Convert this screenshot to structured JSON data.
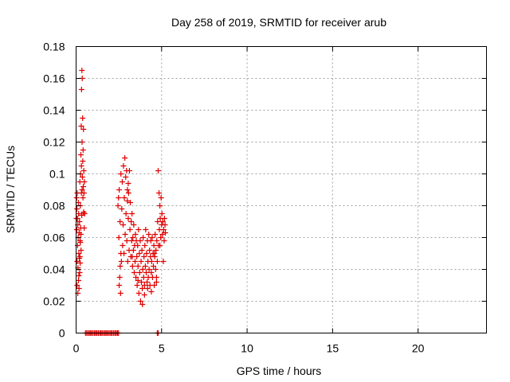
{
  "chart_data": {
    "type": "scatter",
    "title": "Day 258 of 2019, SRMTID for receiver arub",
    "xlabel": "GPS time / hours",
    "ylabel": "SRMTID / TECUs",
    "xlim": [
      0,
      24
    ],
    "ylim": [
      0,
      0.18
    ],
    "x_ticks": [
      0,
      5,
      10,
      15,
      20
    ],
    "x_tick_labels": [
      "0",
      "5",
      "10",
      "15",
      "20"
    ],
    "y_ticks": [
      0,
      0.02,
      0.04,
      0.06,
      0.08,
      0.1,
      0.12,
      0.14,
      0.16,
      0.18
    ],
    "y_tick_labels": [
      "0",
      "0.02",
      "0.04",
      "0.06",
      "0.08",
      "0.1",
      "0.12",
      "0.14",
      "0.16",
      "0.18"
    ],
    "grid": true,
    "marker": "plus",
    "color": "#e00000",
    "series": [
      {
        "points": [
          [
            0.02,
            0.072
          ],
          [
            0.03,
            0.085
          ],
          [
            0.04,
            0.065
          ],
          [
            0.05,
            0.078
          ],
          [
            0.06,
            0.045
          ],
          [
            0.07,
            0.088
          ],
          [
            0.08,
            0.072
          ],
          [
            0.09,
            0.055
          ],
          [
            0.1,
            0.068
          ],
          [
            0.11,
            0.041
          ],
          [
            0.12,
            0.06
          ],
          [
            0.13,
            0.082
          ],
          [
            0.14,
            0.033
          ],
          [
            0.15,
            0.075
          ],
          [
            0.16,
            0.05
          ],
          [
            0.17,
            0.028
          ],
          [
            0.18,
            0.063
          ],
          [
            0.19,
            0.047
          ],
          [
            0.2,
            0.07
          ],
          [
            0.21,
            0.038
          ],
          [
            0.22,
            0.095
          ],
          [
            0.23,
            0.058
          ],
          [
            0.24,
            0.044
          ],
          [
            0.25,
            0.08
          ],
          [
            0.26,
            0.1
          ],
          [
            0.27,
            0.066
          ],
          [
            0.28,
            0.112
          ],
          [
            0.29,
            0.052
          ],
          [
            0.3,
            0.13
          ],
          [
            0.31,
            0.088
          ],
          [
            0.32,
            0.153
          ],
          [
            0.33,
            0.074
          ],
          [
            0.34,
            0.165
          ],
          [
            0.35,
            0.12
          ],
          [
            0.36,
            0.16
          ],
          [
            0.37,
            0.098
          ],
          [
            0.38,
            0.135
          ],
          [
            0.39,
            0.108
          ],
          [
            0.4,
            0.085
          ],
          [
            0.41,
            0.115
          ],
          [
            0.42,
            0.092
          ],
          [
            0.43,
            0.128
          ],
          [
            0.44,
            0.076
          ],
          [
            0.45,
            0.102
          ],
          [
            0.46,
            0.088
          ],
          [
            0.47,
            0.066
          ],
          [
            0.48,
            0.095
          ],
          [
            0.5,
            0.075
          ],
          [
            0.06,
            0.03
          ],
          [
            0.1,
            0.025
          ],
          [
            0.16,
            0.036
          ],
          [
            0.22,
            0.048
          ],
          [
            0.25,
            0.057
          ],
          [
            0.28,
            0.062
          ],
          [
            0.31,
            0.105
          ],
          [
            0.35,
            0.09
          ],
          [
            2.45,
            0.08
          ],
          [
            2.48,
            0.085
          ],
          [
            2.5,
            0.06
          ],
          [
            2.52,
            0.09
          ],
          [
            2.55,
            0.035
          ],
          [
            2.57,
            0.07
          ],
          [
            2.6,
            0.025
          ],
          [
            2.62,
            0.1
          ],
          [
            2.65,
            0.045
          ],
          [
            2.67,
            0.078
          ],
          [
            2.7,
            0.095
          ],
          [
            2.72,
            0.055
          ],
          [
            2.75,
            0.068
          ],
          [
            2.77,
            0.105
          ],
          [
            2.8,
            0.05
          ],
          [
            2.82,
            0.085
          ],
          [
            2.85,
            0.11
          ],
          [
            2.87,
            0.062
          ],
          [
            2.9,
            0.098
          ],
          [
            2.92,
            0.075
          ],
          [
            2.95,
            0.102
          ],
          [
            2.97,
            0.058
          ],
          [
            3.0,
            0.09
          ],
          [
            3.02,
            0.045
          ],
          [
            3.05,
            0.072
          ],
          [
            3.07,
            0.088
          ],
          [
            3.1,
            0.052
          ],
          [
            3.12,
            0.102
          ],
          [
            3.15,
            0.065
          ],
          [
            3.17,
            0.082
          ],
          [
            3.2,
            0.048
          ],
          [
            3.22,
            0.07
          ],
          [
            3.25,
            0.058
          ],
          [
            3.27,
            0.075
          ],
          [
            3.3,
            0.042
          ],
          [
            3.32,
            0.06
          ],
          [
            3.35,
            0.052
          ],
          [
            3.37,
            0.068
          ],
          [
            3.4,
            0.038
          ],
          [
            3.42,
            0.055
          ],
          [
            3.45,
            0.045
          ],
          [
            3.47,
            0.062
          ],
          [
            3.5,
            0.035
          ],
          [
            3.52,
            0.058
          ],
          [
            3.55,
            0.048
          ],
          [
            3.57,
            0.03
          ],
          [
            3.6,
            0.055
          ],
          [
            3.62,
            0.042
          ],
          [
            3.65,
            0.065
          ],
          [
            3.67,
            0.025
          ],
          [
            3.7,
            0.05
          ],
          [
            3.72,
            0.038
          ],
          [
            3.75,
            0.058
          ],
          [
            3.77,
            0.02
          ],
          [
            3.8,
            0.045
          ],
          [
            3.82,
            0.032
          ],
          [
            3.85,
            0.052
          ],
          [
            3.87,
            0.028
          ],
          [
            3.9,
            0.04
          ],
          [
            3.92,
            0.06
          ],
          [
            3.95,
            0.035
          ],
          [
            3.97,
            0.048
          ],
          [
            4.0,
            0.03
          ],
          [
            4.02,
            0.055
          ],
          [
            4.05,
            0.042
          ],
          [
            4.07,
            0.065
          ],
          [
            4.1,
            0.038
          ],
          [
            4.12,
            0.05
          ],
          [
            4.15,
            0.032
          ],
          [
            4.17,
            0.058
          ],
          [
            4.2,
            0.045
          ],
          [
            4.22,
            0.035
          ],
          [
            4.25,
            0.062
          ],
          [
            4.27,
            0.04
          ],
          [
            4.3,
            0.052
          ],
          [
            4.32,
            0.03
          ],
          [
            4.35,
            0.048
          ],
          [
            4.37,
            0.058
          ],
          [
            4.4,
            0.038
          ],
          [
            4.42,
            0.045
          ],
          [
            4.45,
            0.06
          ],
          [
            4.47,
            0.035
          ],
          [
            4.5,
            0.05
          ],
          [
            4.52,
            0.042
          ],
          [
            4.55,
            0.055
          ],
          [
            4.57,
            0.03
          ],
          [
            4.6,
            0.048
          ],
          [
            4.62,
            0.062
          ],
          [
            4.65,
            0.04
          ],
          [
            4.67,
            0.052
          ],
          [
            4.7,
            0.035
          ],
          [
            4.72,
            0.058
          ],
          [
            4.75,
            0.045
          ],
          [
            4.77,
            0.07
          ],
          [
            4.8,
            0.102
          ],
          [
            4.82,
            0.055
          ],
          [
            4.85,
            0.088
          ],
          [
            4.87,
            0.065
          ],
          [
            4.9,
            0.08
          ],
          [
            4.92,
            0.072
          ],
          [
            4.95,
            0.06
          ],
          [
            4.97,
            0.085
          ],
          [
            5.0,
            0.068
          ],
          [
            5.02,
            0.075
          ],
          [
            5.05,
            0.062
          ],
          [
            5.07,
            0.07
          ],
          [
            5.1,
            0.045
          ],
          [
            5.12,
            0.065
          ],
          [
            5.15,
            0.058
          ],
          [
            5.17,
            0.072
          ],
          [
            5.2,
            0.068
          ],
          [
            5.22,
            0.063
          ],
          [
            2.52,
            0.03
          ],
          [
            2.58,
            0.042
          ],
          [
            2.62,
            0.05
          ],
          [
            3.0,
            0.083
          ],
          [
            3.05,
            0.094
          ],
          [
            3.28,
            0.048
          ],
          [
            3.62,
            0.033
          ],
          [
            3.88,
            0.018
          ],
          [
            4.0,
            0.024
          ],
          [
            4.18,
            0.028
          ],
          [
            4.4,
            0.026
          ],
          [
            4.58,
            0.05
          ],
          [
            4.7,
            0.032
          ],
          [
            4.9,
            0.055
          ]
        ]
      },
      {
        "points": [
          [
            0.55,
            0
          ],
          [
            0.62,
            0
          ],
          [
            0.7,
            0
          ],
          [
            0.78,
            0
          ],
          [
            0.85,
            0
          ],
          [
            0.92,
            0
          ],
          [
            1.0,
            0
          ],
          [
            1.08,
            0
          ],
          [
            1.15,
            0
          ],
          [
            1.22,
            0
          ],
          [
            1.3,
            0
          ],
          [
            1.38,
            0
          ],
          [
            1.45,
            0
          ],
          [
            1.52,
            0
          ],
          [
            1.6,
            0
          ],
          [
            1.68,
            0
          ],
          [
            1.75,
            0
          ],
          [
            1.82,
            0
          ],
          [
            1.9,
            0
          ],
          [
            1.98,
            0
          ],
          [
            2.05,
            0
          ],
          [
            2.12,
            0
          ],
          [
            2.2,
            0
          ],
          [
            2.28,
            0
          ],
          [
            2.35,
            0
          ],
          [
            2.42,
            0
          ],
          [
            2.48,
            0
          ],
          [
            4.75,
            0
          ],
          [
            4.8,
            0
          ]
        ]
      }
    ]
  }
}
